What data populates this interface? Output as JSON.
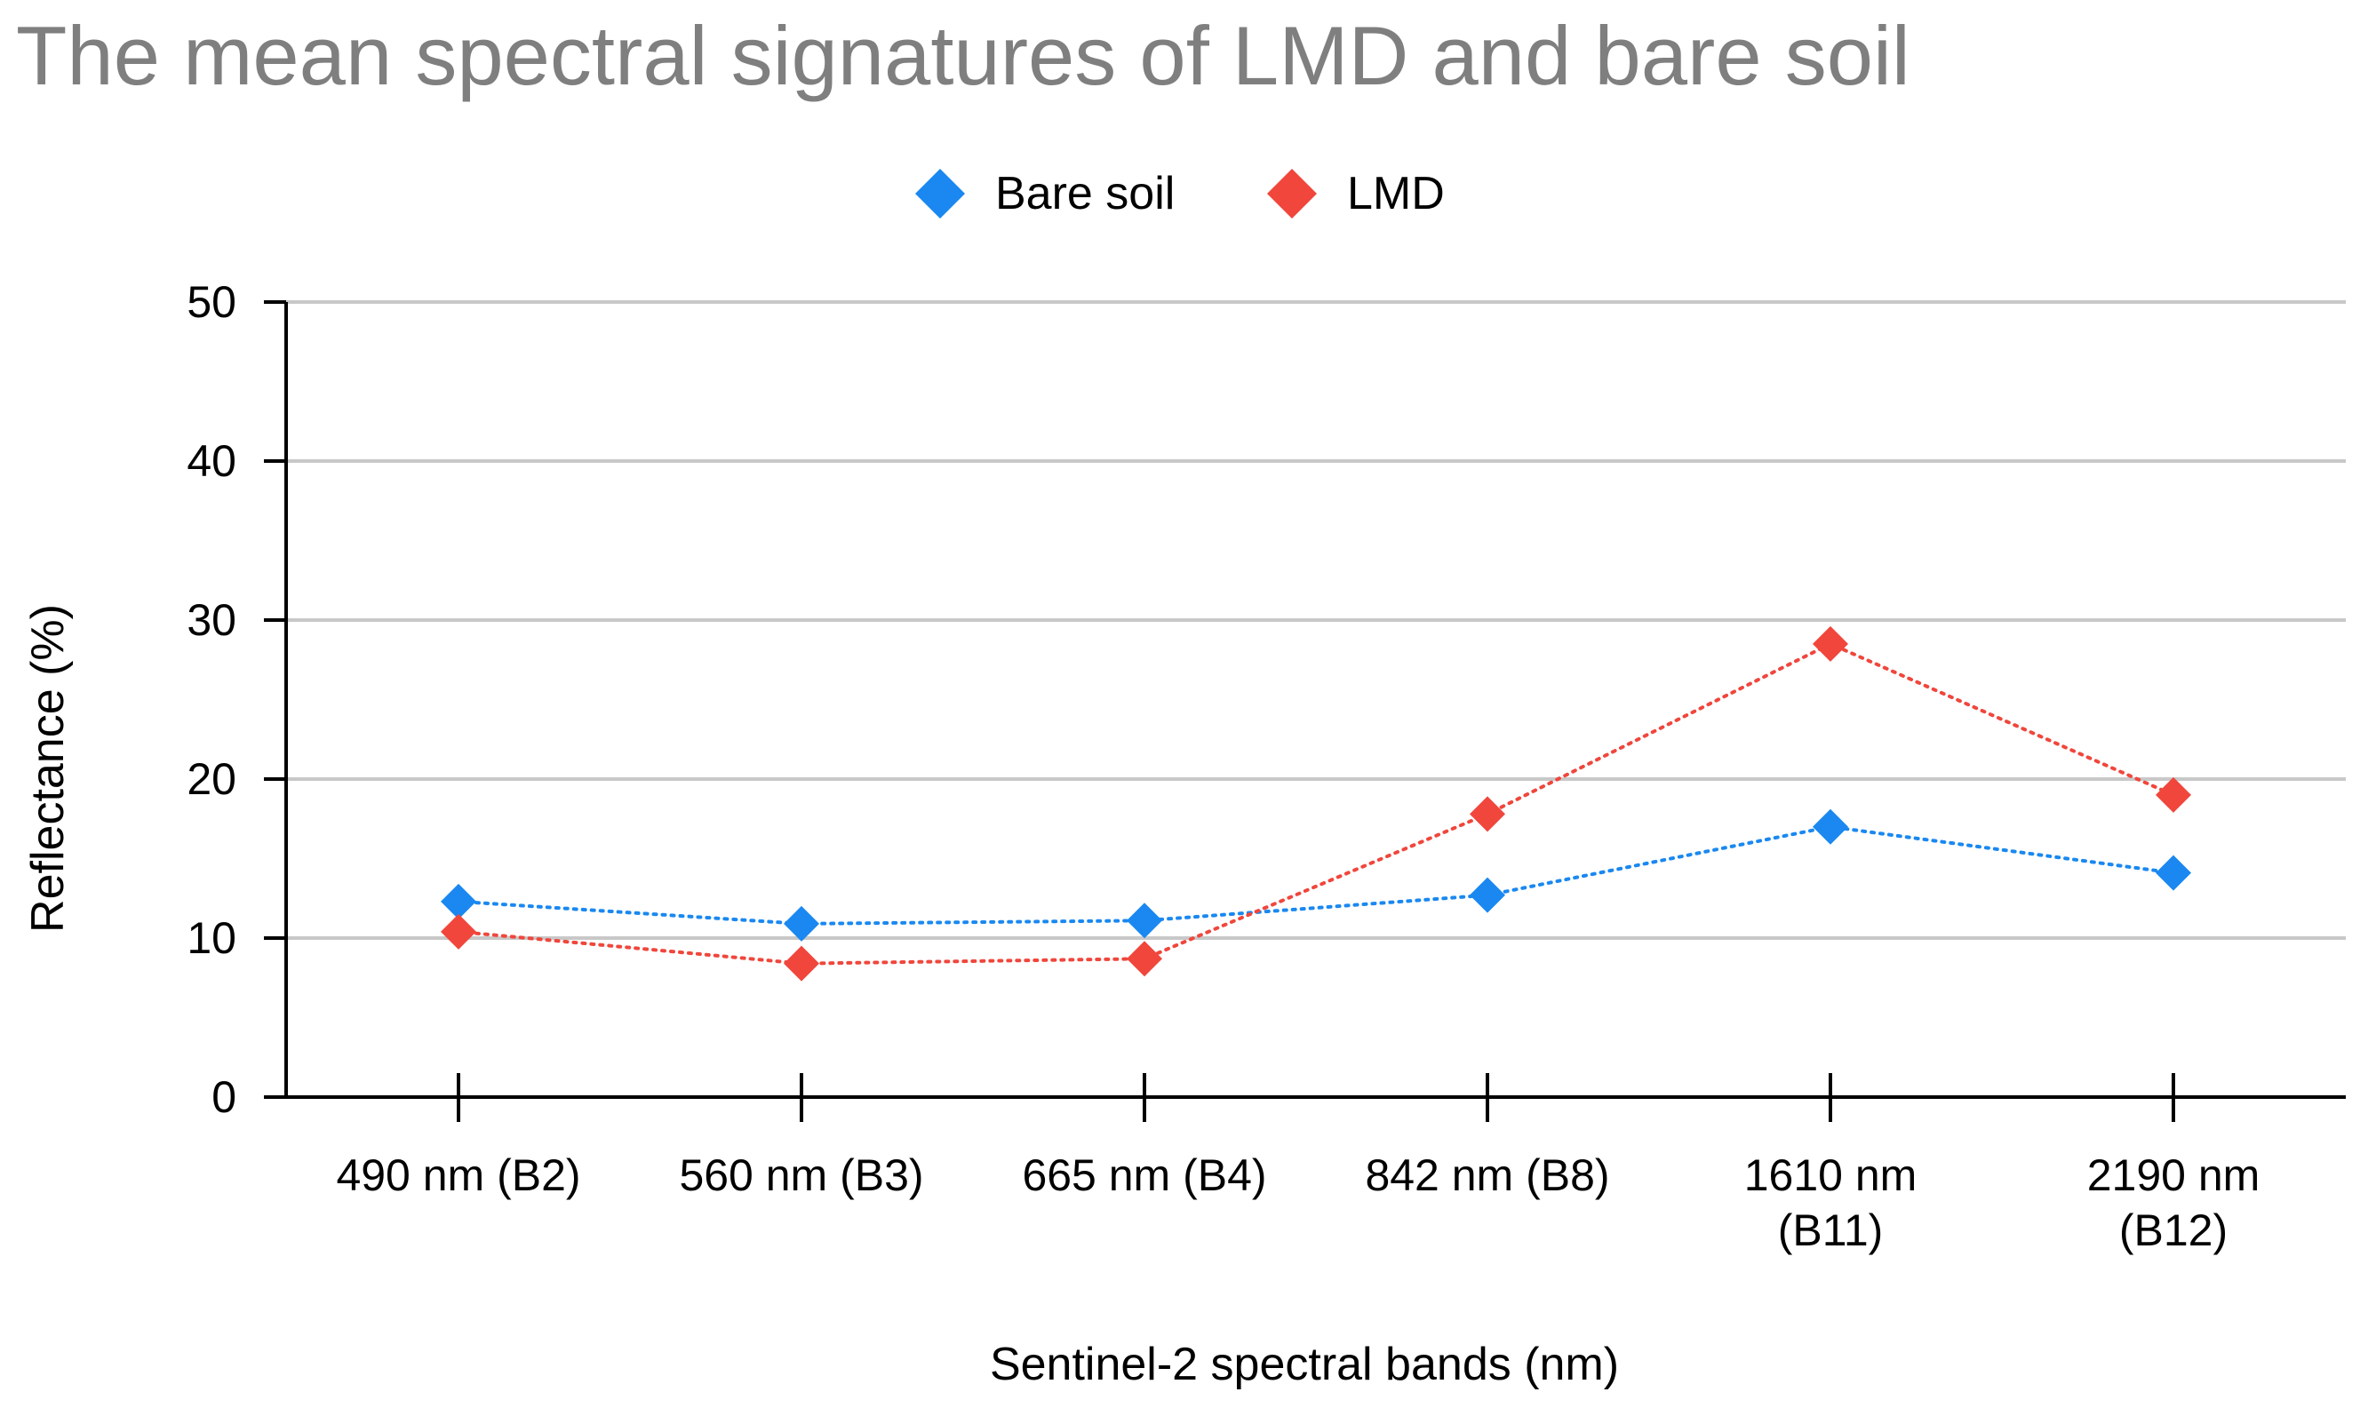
{
  "chart_data": {
    "type": "line",
    "title": "The mean spectral signatures of LMD and bare soil",
    "xlabel": "Sentinel-2 spectral bands (nm)",
    "ylabel": "Reflectance (%)",
    "ylim": [
      0,
      50
    ],
    "yticks": [
      "0",
      "10",
      "20",
      "30",
      "40",
      "50"
    ],
    "grid": true,
    "legend_position": "top-center",
    "categories": [
      [
        "490 nm (B2)"
      ],
      [
        "560 nm (B3)"
      ],
      [
        "665 nm (B4)"
      ],
      [
        "842 nm (B8)"
      ],
      [
        "1610 nm",
        "(B11)"
      ],
      [
        "2190 nm",
        "(B12)"
      ]
    ],
    "series": [
      {
        "name": "Bare soil",
        "color": "#1a88f0",
        "values": [
          12.3,
          10.9,
          11.1,
          12.7,
          17.0,
          14.1
        ]
      },
      {
        "name": "LMD",
        "color": "#f0463c",
        "values": [
          10.4,
          8.4,
          8.7,
          17.8,
          28.5,
          19.0
        ]
      }
    ]
  }
}
